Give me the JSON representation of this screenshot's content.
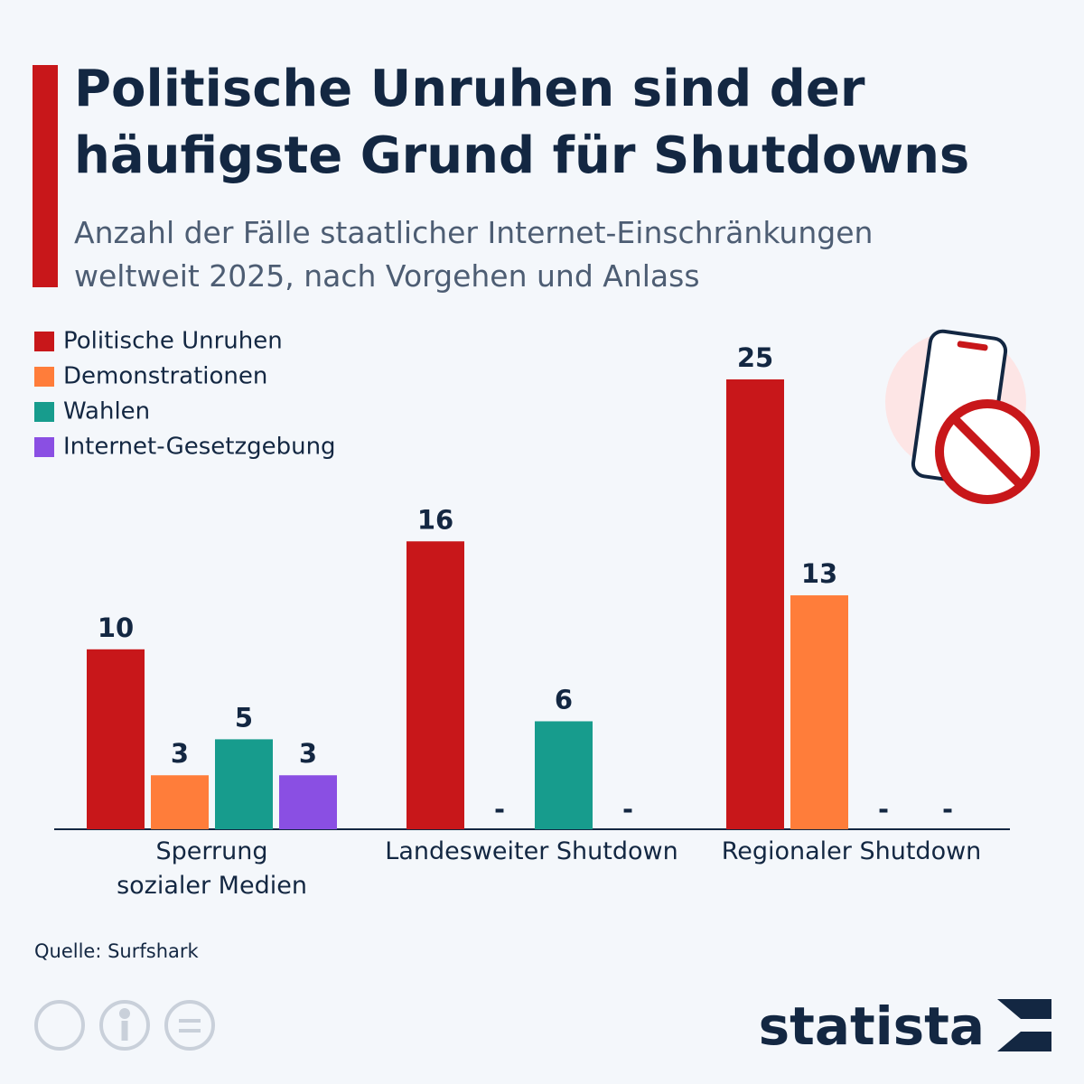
{
  "chart_data": {
    "type": "bar",
    "title": "Politische Unruhen sind der häufigste Grund für Shutdowns",
    "subtitle": "Anzahl der Fälle staatlicher Internet-Einschränkungen weltweit 2025, nach Vorgehen und Anlass",
    "categories": [
      "Sperrung\nsozialer Medien",
      "Landesweiter Shutdown",
      "Regionaler Shutdown"
    ],
    "series": [
      {
        "name": "Politische Unruhen",
        "color": "#c8171a",
        "values": [
          10,
          16,
          25
        ]
      },
      {
        "name": "Demonstrationen",
        "color": "#ff7d3a",
        "values": [
          3,
          null,
          13
        ],
        "value_labels": [
          "3",
          "-",
          "13"
        ]
      },
      {
        "name": "Wahlen",
        "color": "#179c8d",
        "values": [
          5,
          6,
          null
        ],
        "value_labels": [
          "5",
          "6",
          "-"
        ]
      },
      {
        "name": "Internet-Gesetzgebung",
        "color": "#8a4fe3",
        "values": [
          3,
          null,
          null
        ],
        "value_labels": [
          "3",
          "-",
          "-"
        ]
      }
    ],
    "source": "Quelle: Surfshark"
  },
  "brand": "statista"
}
